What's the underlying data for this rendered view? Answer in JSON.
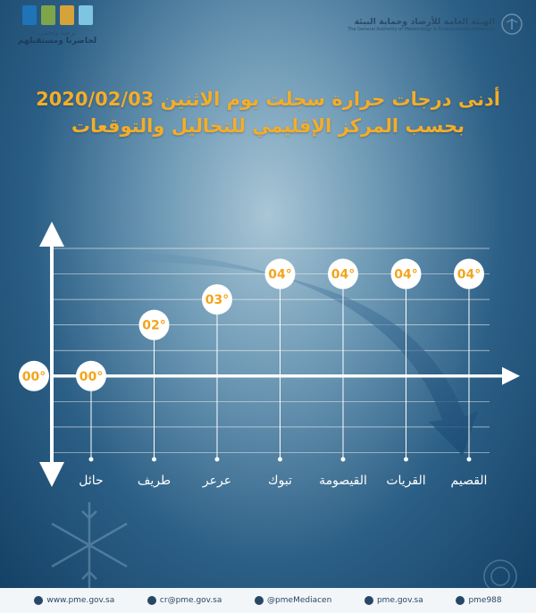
{
  "header": {
    "slogan_top": "نرصد ونحمي",
    "slogan_bottom": "لحاضرنا ومستقبلهم",
    "org_ar": "الهيئة العامة للأرصاد وحماية البيئة",
    "org_en": "The General Authority of Meteorology & Environmental Protection",
    "flag_colors": [
      "#1f73b7",
      "#7fa54b",
      "#d6a23a",
      "#7fc4e0"
    ]
  },
  "chart_data": {
    "type": "scatter",
    "title": "أدنى درجات حرارة سجلت يوم الاثنين 2020/02/03",
    "subtitle": "بحسب المركز الإقليمي للتحاليل والتوقعات",
    "axis_label": "00°",
    "categories": [
      "حائل",
      "طريف",
      "عرعر",
      "تبوك",
      "القيصومة",
      "القريات",
      "القصيم"
    ],
    "values": [
      0,
      2,
      3,
      4,
      4,
      4,
      4
    ],
    "point_labels": [
      "00°",
      "02°",
      "03°",
      "04°",
      "04°",
      "04°",
      "04°"
    ],
    "ylim": [
      -4,
      5.7
    ],
    "grid": true,
    "colors": {
      "point_fill": "#ffffff",
      "point_text": "#f2a51c",
      "axis": "#ffffff",
      "grid": "#ffffff",
      "category_text": "#ffffff"
    }
  },
  "footer": {
    "items": [
      "www.pme.gov.sa",
      "cr@pme.gov.sa",
      "@pmeMediacen",
      "pme.gov.sa",
      "pme988"
    ]
  }
}
